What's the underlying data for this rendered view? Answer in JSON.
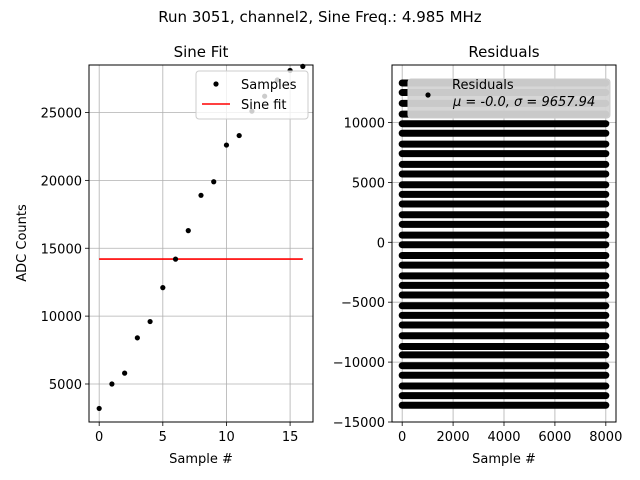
{
  "suptitle": "Run 3051, channel2, Sine Freq.: 4.985 MHz",
  "chart_data": [
    {
      "type": "scatter",
      "title": "Sine Fit",
      "xlabel": "Sample #",
      "ylabel": "ADC Counts",
      "xlim": [
        -0.8,
        16.8
      ],
      "ylim": [
        2200,
        28500
      ],
      "xticks": [
        0,
        5,
        10,
        15
      ],
      "yticks": [
        5000,
        10000,
        15000,
        20000,
        25000
      ],
      "grid": true,
      "legend_loc": "top-right",
      "samples": {
        "name": "Samples",
        "color": "#000000",
        "x": [
          0,
          1,
          2,
          3,
          4,
          5,
          6,
          7,
          8,
          9,
          10,
          11,
          12,
          13,
          14,
          15,
          16
        ],
        "y": [
          3200,
          5000,
          5800,
          8400,
          9600,
          12100,
          14200,
          16300,
          18900,
          19900,
          22600,
          23300,
          25100,
          26200,
          27400,
          28100,
          28400
        ]
      },
      "fit": {
        "name": "Sine fit",
        "color": "#ff0000",
        "x": [
          0,
          16
        ],
        "y": [
          14200,
          14200
        ]
      }
    },
    {
      "type": "scatter",
      "title": "Residuals",
      "xlabel": "Sample #",
      "xlim": [
        -400,
        8400
      ],
      "ylim": [
        -15000,
        14800
      ],
      "xticks": [
        0,
        2000,
        4000,
        6000,
        8000
      ],
      "yticks": [
        -15000,
        -10000,
        -5000,
        0,
        5000,
        10000
      ],
      "grid": true,
      "legend_loc": "top-right",
      "residuals": {
        "name": "Residuals",
        "stats_label": "μ = -0.0, σ = 9657.94",
        "color": "#000000",
        "x_range": [
          0,
          8000
        ],
        "levels": [
          -13600,
          -12800,
          -12000,
          -11100,
          -10300,
          -9400,
          -8700,
          -7800,
          -6900,
          -6100,
          -5300,
          -4400,
          -3600,
          -2800,
          -1900,
          -1100,
          -200,
          600,
          1500,
          2300,
          3200,
          4000,
          4800,
          5700,
          6500,
          7400,
          8200,
          9100,
          9900,
          10700,
          11600,
          12500,
          13300
        ]
      }
    }
  ]
}
